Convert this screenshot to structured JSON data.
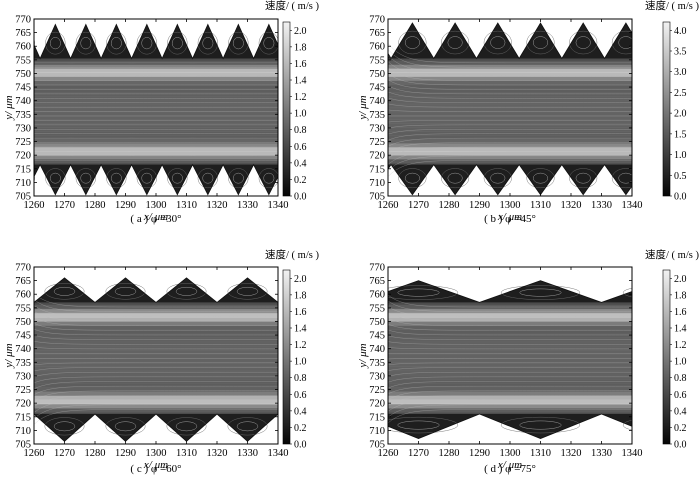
{
  "chart_data": [
    {
      "type": "heatmap",
      "caption": "( a ) φ =30°",
      "xlabel": "x/ μm",
      "ylabel": "y/ μm",
      "x_ticks": [
        1260,
        1270,
        1280,
        1290,
        1300,
        1310,
        1320,
        1330,
        1340
      ],
      "y_ticks": [
        705,
        710,
        715,
        720,
        725,
        730,
        735,
        740,
        745,
        750,
        755,
        760,
        765,
        770
      ],
      "xlim": [
        1260,
        1340
      ],
      "ylim": [
        705,
        770
      ],
      "colorbar": {
        "title": "速度/ ( m/s )",
        "ticks": [
          "0.0",
          "0.2",
          "0.4",
          "0.6",
          "0.8",
          "1.0",
          "1.2",
          "1.4",
          "1.6",
          "1.8",
          "2.0"
        ],
        "range": [
          0,
          2.1
        ]
      },
      "channel": {
        "top_wall": 755.5,
        "top_peak": 768,
        "bottom_wall": 716.5,
        "bottom_peak": 705.5,
        "half_period": 5,
        "x_start": 1262
      }
    },
    {
      "type": "heatmap",
      "caption": "( b ) φ =45°",
      "xlabel": "x/ μm",
      "ylabel": "y/ μm",
      "x_ticks": [
        1260,
        1270,
        1280,
        1290,
        1300,
        1310,
        1320,
        1330,
        1340
      ],
      "y_ticks": [
        705,
        710,
        715,
        720,
        725,
        730,
        735,
        740,
        745,
        750,
        755,
        760,
        765,
        770
      ],
      "xlim": [
        1260,
        1340
      ],
      "ylim": [
        705,
        770
      ],
      "colorbar": {
        "title": "速度/ ( m/s )",
        "ticks": [
          "0.0",
          "0.5",
          "1.0",
          "1.5",
          "2.0",
          "2.5",
          "3.0",
          "3.5",
          "4.0"
        ],
        "range": [
          0,
          4.2
        ]
      },
      "channel": {
        "top_wall": 755.5,
        "top_peak": 768.5,
        "bottom_wall": 716.5,
        "bottom_peak": 705.5,
        "half_period": 7,
        "x_start": 1261
      }
    },
    {
      "type": "heatmap",
      "caption": "( c ) φ =60°",
      "xlabel": "x/ μm",
      "ylabel": "y/ μm",
      "x_ticks": [
        1260,
        1270,
        1280,
        1290,
        1300,
        1310,
        1320,
        1330,
        1340
      ],
      "y_ticks": [
        705,
        710,
        715,
        720,
        725,
        730,
        735,
        740,
        745,
        750,
        755,
        760,
        765,
        770
      ],
      "xlim": [
        1260,
        1340
      ],
      "ylim": [
        705,
        770
      ],
      "colorbar": {
        "title": "速度/ ( m/s )",
        "ticks": [
          "0.0",
          "0.2",
          "0.4",
          "0.6",
          "0.8",
          "1.0",
          "1.2",
          "1.4",
          "1.6",
          "1.8",
          "2.0"
        ],
        "range": [
          0,
          2.1
        ]
      },
      "channel": {
        "top_wall": 757,
        "top_peak": 766,
        "bottom_wall": 716,
        "bottom_peak": 706,
        "half_period": 10,
        "x_start": 1260
      }
    },
    {
      "type": "heatmap",
      "caption": "( d ) φ =75°",
      "xlabel": "x/ μm",
      "ylabel": "y/ μm",
      "x_ticks": [
        1260,
        1270,
        1280,
        1290,
        1300,
        1310,
        1320,
        1330,
        1340
      ],
      "y_ticks": [
        705,
        710,
        715,
        720,
        725,
        730,
        735,
        740,
        745,
        750,
        755,
        760,
        765,
        770
      ],
      "xlim": [
        1260,
        1340
      ],
      "ylim": [
        705,
        770
      ],
      "colorbar": {
        "title": "速度/ ( m/s )",
        "ticks": [
          "0.0",
          "0.2",
          "0.4",
          "0.6",
          "0.8",
          "1.0",
          "1.2",
          "1.4",
          "1.6",
          "1.8",
          "2.0"
        ],
        "range": [
          0,
          2.1
        ]
      },
      "channel": {
        "top_wall": 757,
        "top_peak": 765,
        "bottom_wall": 716,
        "bottom_peak": 707,
        "half_period": 20,
        "x_start": 1250
      }
    }
  ]
}
